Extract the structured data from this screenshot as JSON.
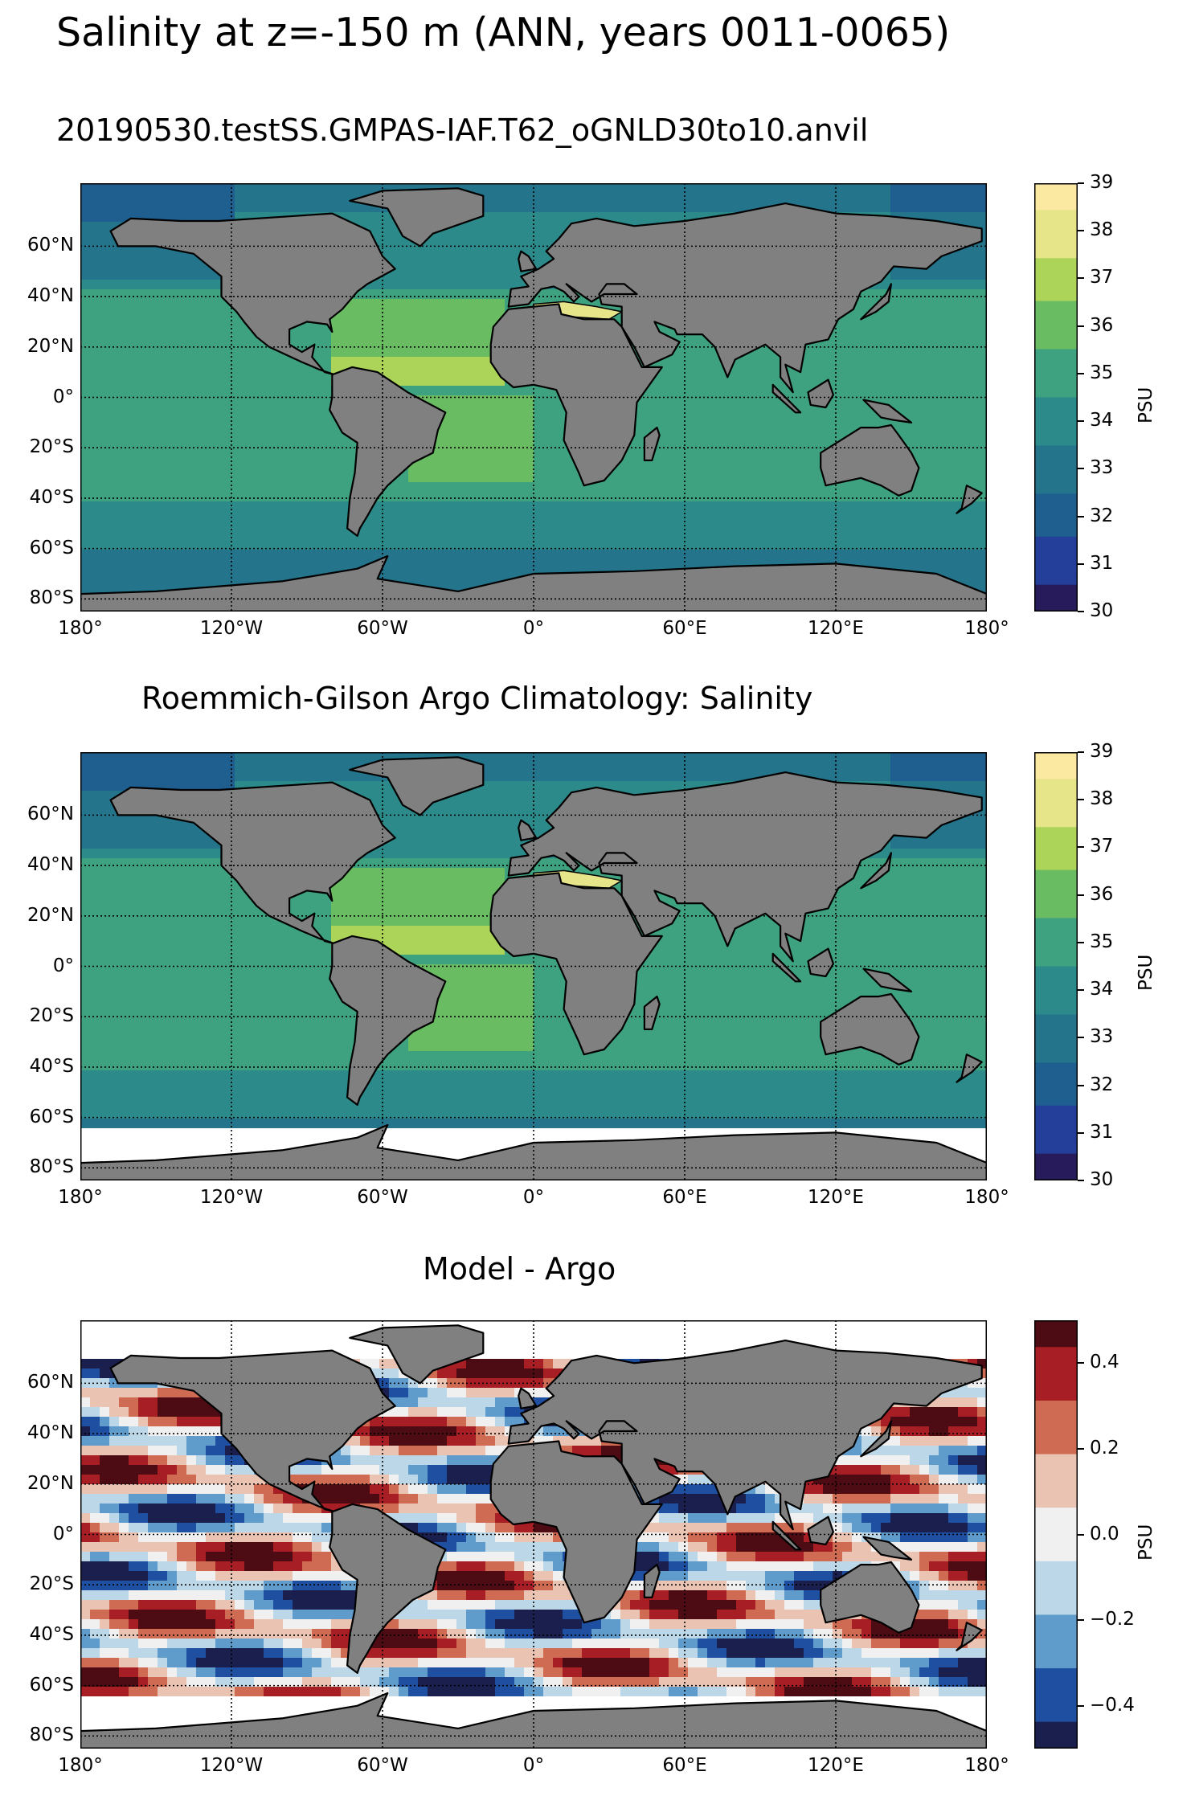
{
  "figure": {
    "title": "Salinity at z=-150 m (ANN, years 0011-0065)"
  },
  "panels": [
    {
      "id": "model",
      "title": "20190530.testSS.GMPAS-IAF.T62_oGNLD30to10.anvil",
      "colorbar": {
        "unit": "PSU",
        "ticks": [
          "30",
          "31",
          "32",
          "33",
          "34",
          "35",
          "36",
          "37",
          "38",
          "39"
        ],
        "range": [
          30,
          39
        ],
        "colors": [
          "#271b5c",
          "#233f9a",
          "#1f5f8f",
          "#24748b",
          "#2d8a8a",
          "#3ea17f",
          "#6abc62",
          "#abd458",
          "#e6e58a",
          "#fbe9a2"
        ]
      }
    },
    {
      "id": "obs",
      "title": "Roemmich-Gilson Argo Climatology: Salinity",
      "colorbar": {
        "unit": "PSU",
        "ticks": [
          "30",
          "31",
          "32",
          "33",
          "34",
          "35",
          "36",
          "37",
          "38",
          "39"
        ],
        "range": [
          30,
          39
        ],
        "colors": [
          "#271b5c",
          "#233f9a",
          "#1f5f8f",
          "#24748b",
          "#2d8a8a",
          "#3ea17f",
          "#6abc62",
          "#abd458",
          "#e6e58a",
          "#fbe9a2"
        ]
      }
    },
    {
      "id": "diff",
      "title": "Model - Argo",
      "colorbar": {
        "unit": "PSU",
        "ticks": [
          "0.4",
          "0.2",
          "0.0",
          "−0.2",
          "−0.4"
        ],
        "range": [
          -0.5,
          0.5
        ],
        "colors": [
          "#1a1f4d",
          "#1f4fa0",
          "#5f9ccc",
          "#bcd8e8",
          "#f0f0f0",
          "#eac3b3",
          "#cf6b52",
          "#a71f24",
          "#4d0c14"
        ]
      }
    }
  ],
  "axes": {
    "lon_ticks": [
      "180°",
      "120°W",
      "60°W",
      "0°",
      "60°E",
      "120°E",
      "180°"
    ],
    "lat_ticks": [
      "60°N",
      "40°N",
      "20°N",
      "0°",
      "20°S",
      "40°S",
      "60°S",
      "80°S"
    ],
    "lon_values": [
      -180,
      -120,
      -60,
      0,
      60,
      120,
      180
    ],
    "lat_values": [
      60,
      40,
      20,
      0,
      -20,
      -40,
      -60,
      -80
    ],
    "lat_range": [
      -85,
      85
    ],
    "lon_range": [
      -180,
      180
    ]
  },
  "colors": {
    "land": "#808080",
    "ocean_mean_salinity": "#3b9a82",
    "missing": "#ffffff"
  }
}
